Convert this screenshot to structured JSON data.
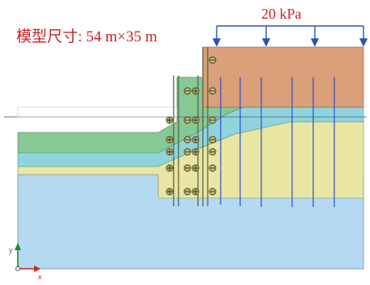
{
  "annotations": {
    "model_size": "模型尺寸: 54 m×35 m",
    "load": "20 kPa"
  },
  "axes": {
    "x_label": "x",
    "y_label": "y"
  },
  "colors": {
    "annotation_text": "#cc2222",
    "load_arrows": "#2a55b0",
    "layer_top_brown": "#d9a07a",
    "layer_green": "#86c997",
    "layer_cyan": "#8fd4dc",
    "layer_yellow": "#e8e6a2",
    "layer_bottom_blue": "#b4daf2",
    "pile_lines": "#2e4fd0",
    "anchor_marker": "#c9bd6a",
    "axis_y": "#1a8a2a",
    "axis_x": "#d62020"
  },
  "structure": {
    "anchor_symbol": "⊕",
    "wall_symbol": "⊖"
  }
}
